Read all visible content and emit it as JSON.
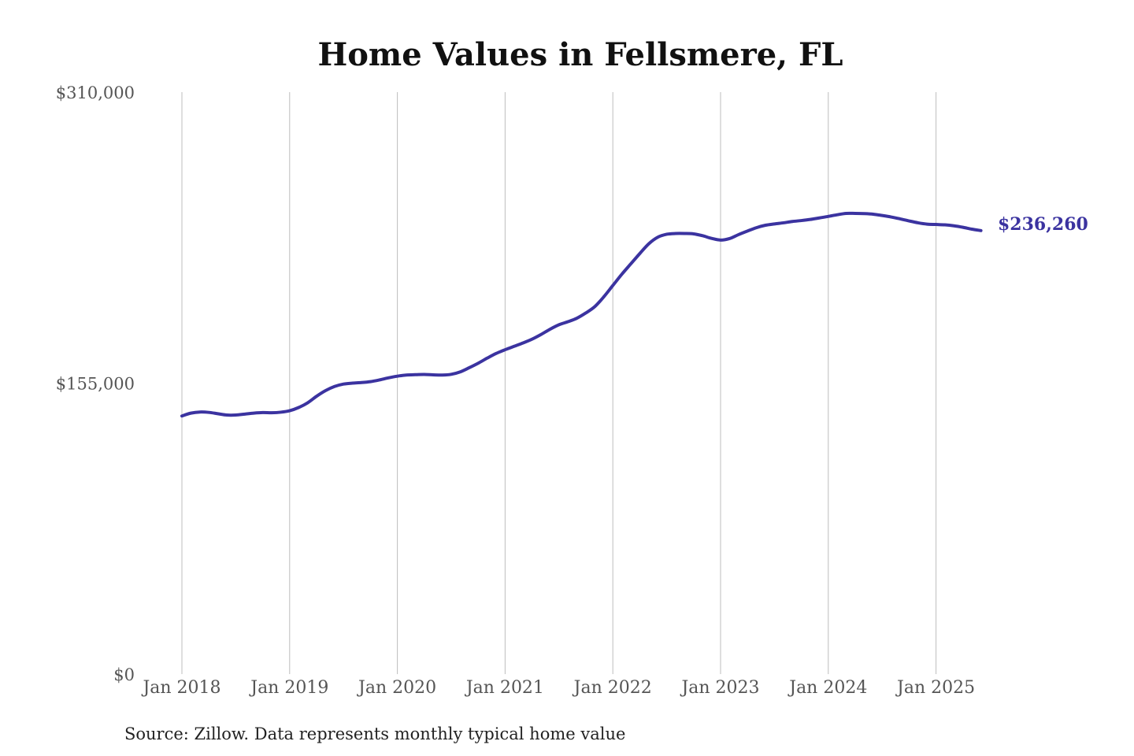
{
  "chart_data": {
    "type": "line",
    "title": "Home Values in Fellsmere, FL",
    "xlabel": "",
    "ylabel": "",
    "source": "Source: Zillow. Data represents monthly typical home value",
    "colors": {
      "series": "#3b33a0",
      "grid": "#bdbdbd"
    },
    "ylim": [
      0,
      310000
    ],
    "y_ticks": [
      {
        "value": 0,
        "label": "$0"
      },
      {
        "value": 155000,
        "label": "$155,000"
      },
      {
        "value": 310000,
        "label": "$310,000"
      }
    ],
    "x_range": [
      "2018-01",
      "2025-06"
    ],
    "x_ticks": [
      {
        "date": "2018-01",
        "label": "Jan 2018"
      },
      {
        "date": "2019-01",
        "label": "Jan 2019"
      },
      {
        "date": "2020-01",
        "label": "Jan 2020"
      },
      {
        "date": "2021-01",
        "label": "Jan 2021"
      },
      {
        "date": "2022-01",
        "label": "Jan 2022"
      },
      {
        "date": "2023-01",
        "label": "Jan 2023"
      },
      {
        "date": "2024-01",
        "label": "Jan 2024"
      },
      {
        "date": "2025-01",
        "label": "Jan 2025"
      }
    ],
    "grid": "vertical",
    "end_label": "$236,260",
    "series": [
      {
        "x": [
          "2018-01",
          "2018-02",
          "2018-03",
          "2018-04",
          "2018-05",
          "2018-06",
          "2018-07",
          "2018-08",
          "2018-09",
          "2018-10",
          "2018-11",
          "2018-12",
          "2019-01",
          "2019-02",
          "2019-03",
          "2019-04",
          "2019-05",
          "2019-06",
          "2019-07",
          "2019-08",
          "2019-09",
          "2019-10",
          "2019-11",
          "2019-12",
          "2020-01",
          "2020-02",
          "2020-03",
          "2020-04",
          "2020-05",
          "2020-06",
          "2020-07",
          "2020-08",
          "2020-09",
          "2020-10",
          "2020-11",
          "2020-12",
          "2021-01",
          "2021-02",
          "2021-03",
          "2021-04",
          "2021-05",
          "2021-06",
          "2021-07",
          "2021-08",
          "2021-09",
          "2021-10",
          "2021-11",
          "2021-12",
          "2022-01",
          "2022-02",
          "2022-03",
          "2022-04",
          "2022-05",
          "2022-06",
          "2022-07",
          "2022-08",
          "2022-09",
          "2022-10",
          "2022-11",
          "2022-12",
          "2023-01",
          "2023-02",
          "2023-03",
          "2023-04",
          "2023-05",
          "2023-06",
          "2023-07",
          "2023-08",
          "2023-09",
          "2023-10",
          "2023-11",
          "2023-12",
          "2024-01",
          "2024-02",
          "2024-03",
          "2024-04",
          "2024-05",
          "2024-06",
          "2024-07",
          "2024-08",
          "2024-09",
          "2024-10",
          "2024-11",
          "2024-12",
          "2025-01",
          "2025-02",
          "2025-03",
          "2025-04",
          "2025-05",
          "2025-06"
        ],
        "values": [
          137500,
          139000,
          139600,
          139400,
          138700,
          138000,
          138000,
          138500,
          139000,
          139300,
          139200,
          139500,
          140300,
          142000,
          144500,
          148000,
          151000,
          153200,
          154500,
          155000,
          155300,
          155800,
          156700,
          157800,
          158700,
          159300,
          159500,
          159600,
          159400,
          159300,
          159700,
          161000,
          163200,
          165600,
          168300,
          170800,
          172800,
          174600,
          176400,
          178400,
          180900,
          183700,
          186100,
          187700,
          189600,
          192400,
          195800,
          201000,
          207000,
          213000,
          218500,
          224000,
          229200,
          232700,
          234300,
          234700,
          234700,
          234500,
          233500,
          232100,
          231200,
          232000,
          234100,
          236000,
          237800,
          239100,
          239800,
          240400,
          241100,
          241600,
          242200,
          243000,
          243800,
          244700,
          245400,
          245400,
          245300,
          245000,
          244300,
          243500,
          242500,
          241400,
          240400,
          239700,
          239500,
          239300,
          238800,
          238000,
          237000,
          236260
        ]
      }
    ]
  }
}
